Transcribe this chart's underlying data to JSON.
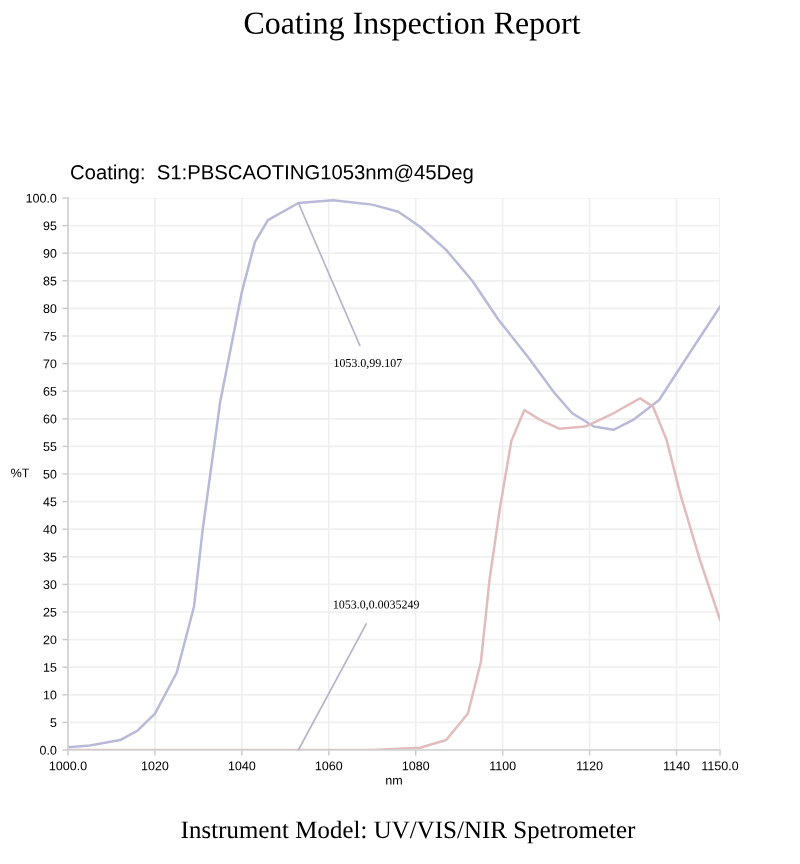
{
  "chart_data": {
    "type": "line",
    "title": "Coating Inspection Report",
    "subtitle": "Coating:  S1:PBSCAOTING1053nm@45Deg",
    "xlabel": "nm",
    "ylabel": "%T",
    "xlim": [
      1000,
      1150
    ],
    "xticks": [
      {
        "value": 1000,
        "label": "1000.0"
      },
      1020,
      1040,
      1060,
      1080,
      1100,
      1120,
      1140,
      {
        "value": 1150,
        "label": "1150.0"
      }
    ],
    "ylim": [
      0,
      100
    ],
    "yticks": [
      {
        "value": 0,
        "label": "0.0"
      },
      5,
      10,
      15,
      20,
      25,
      30,
      35,
      40,
      45,
      50,
      55,
      60,
      65,
      70,
      75,
      80,
      85,
      90,
      95,
      {
        "value": 100,
        "label": "100.0"
      }
    ],
    "grid": true,
    "series": [
      {
        "color": "#b9b9d9",
        "x": [
          1000,
          1005,
          1012,
          1016,
          1020,
          1025,
          1029,
          1031,
          1035,
          1040,
          1043,
          1046,
          1053,
          1061,
          1070,
          1076,
          1081,
          1087,
          1093,
          1099,
          1106,
          1112,
          1116,
          1121,
          1125.5,
          1130,
          1136,
          1142,
          1150
        ],
        "values": [
          0.5,
          0.8,
          1.8,
          3.5,
          6.6,
          14,
          26,
          40,
          63,
          83,
          92,
          96,
          99.1,
          99.6,
          98.8,
          97.5,
          94.8,
          90.6,
          85,
          78,
          71,
          64.6,
          61,
          58.6,
          58,
          59.8,
          63.4,
          70.7,
          80.3
        ]
      },
      {
        "color": "#e2bcbc",
        "x": [
          1000,
          1070,
          1081,
          1087,
          1092,
          1095,
          1097,
          1099.4,
          1102,
          1105,
          1108.6,
          1113,
          1119,
          1125.5,
          1131.6,
          1134.6,
          1137.7,
          1141,
          1145.4,
          1150
        ],
        "values": [
          0,
          0,
          0.4,
          1.8,
          6.6,
          16,
          31,
          44,
          56,
          61.6,
          59.8,
          58.2,
          58.6,
          61,
          63.7,
          62.2,
          56.2,
          46,
          34.4,
          23.6
        ]
      }
    ],
    "annotations": [
      {
        "text": "1053.0,99.107",
        "x": 1053,
        "y": 99.107
      },
      {
        "text": "1053.0,0.0035249",
        "x": 1053,
        "y": 0.0035249
      },
      "Instrument Model: UV/VIS/NIR Spetrometer"
    ]
  }
}
